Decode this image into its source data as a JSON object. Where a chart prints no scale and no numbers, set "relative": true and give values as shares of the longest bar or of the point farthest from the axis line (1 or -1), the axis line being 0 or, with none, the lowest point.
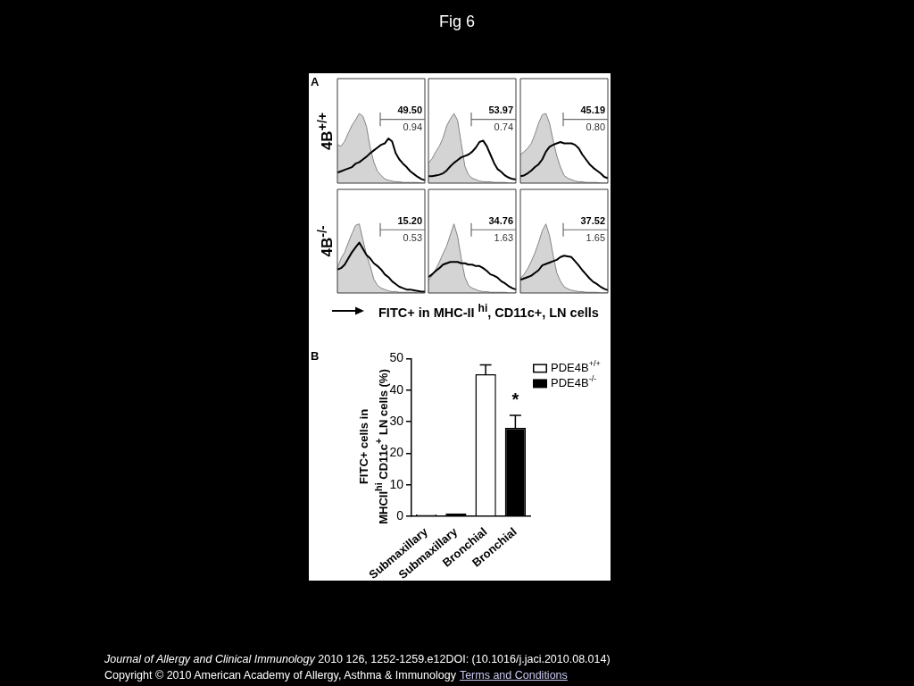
{
  "chart_data": [
    {
      "type": "other",
      "title": "Fig 6"
    },
    {
      "type": "area",
      "title": "A",
      "ylabel": "4B$^{+/+}$",
      "relative": true,
      "tick_labels": false,
      "categories": [
        null,
        null,
        null,
        null,
        null,
        null,
        null,
        null,
        null,
        null,
        null,
        null,
        null,
        null,
        null,
        null,
        null,
        null,
        null,
        null,
        null,
        null,
        null,
        null,
        null
      ],
      "series": [
        {
          "type": "area",
          "color": "#d4d4d4",
          "values": [
            0.55,
            0.53,
            0.6,
            0.72,
            0.83,
            0.91,
            1,
            0.96,
            0.81,
            0.51,
            0.3,
            0.17,
            0.11,
            0.06,
            0.04,
            0.03,
            0.02,
            0.02,
            0.01,
            0.01,
            0.01,
            0.01,
            0.01,
            0,
            0
          ]
        },
        {
          "type": "line",
          "color": "#000000",
          "values": [
            0.15,
            0.17,
            0.19,
            0.21,
            0.23,
            0.28,
            0.3,
            0.34,
            0.38,
            0.43,
            0.47,
            0.51,
            0.55,
            0.57,
            0.64,
            0.6,
            0.43,
            0.34,
            0.28,
            0.23,
            0.17,
            0.13,
            0.09,
            0.06,
            0.04
          ]
        }
      ],
      "annotations": [
        "49.50",
        "0.94"
      ]
    },
    {
      "type": "area",
      "relative": true,
      "tick_labels": false,
      "categories": [
        null,
        null,
        null,
        null,
        null,
        null,
        null,
        null,
        null,
        null,
        null,
        null,
        null,
        null,
        null,
        null,
        null,
        null,
        null,
        null,
        null,
        null,
        null,
        null,
        null
      ],
      "series": [
        {
          "type": "area",
          "color": "#d4d4d4",
          "values": [
            0.29,
            0.35,
            0.45,
            0.53,
            0.65,
            0.82,
            0.92,
            1,
            0.9,
            0.57,
            0.24,
            0.12,
            0.07,
            0.05,
            0.03,
            0.02,
            0.02,
            0.02,
            0.01,
            0.01,
            0.01,
            0.01,
            0,
            0,
            0
          ]
        },
        {
          "type": "line",
          "color": "#000000",
          "values": [
            0.1,
            0.1,
            0.11,
            0.12,
            0.14,
            0.18,
            0.24,
            0.29,
            0.33,
            0.37,
            0.39,
            0.41,
            0.45,
            0.51,
            0.59,
            0.61,
            0.53,
            0.41,
            0.29,
            0.2,
            0.16,
            0.11,
            0.08,
            0.06,
            0.05
          ]
        }
      ],
      "annotations": [
        "53.97",
        "0.74"
      ]
    },
    {
      "type": "area",
      "relative": true,
      "tick_labels": false,
      "categories": [
        null,
        null,
        null,
        null,
        null,
        null,
        null,
        null,
        null,
        null,
        null,
        null,
        null,
        null,
        null,
        null,
        null,
        null,
        null,
        null,
        null,
        null,
        null,
        null,
        null
      ],
      "series": [
        {
          "type": "area",
          "color": "#d4d4d4",
          "values": [
            0.41,
            0.45,
            0.5,
            0.57,
            0.7,
            0.86,
            0.98,
            1,
            0.86,
            0.61,
            0.39,
            0.23,
            0.11,
            0.07,
            0.05,
            0.03,
            0.02,
            0.02,
            0.01,
            0.01,
            0.01,
            0.01,
            0,
            0,
            0
          ]
        },
        {
          "type": "line",
          "color": "#000000",
          "values": [
            0.1,
            0.11,
            0.14,
            0.18,
            0.23,
            0.27,
            0.34,
            0.45,
            0.52,
            0.55,
            0.57,
            0.59,
            0.57,
            0.57,
            0.57,
            0.55,
            0.5,
            0.41,
            0.34,
            0.27,
            0.22,
            0.18,
            0.14,
            0.09,
            0.07
          ]
        }
      ],
      "annotations": [
        "45.19",
        "0.80"
      ]
    },
    {
      "type": "area",
      "ylabel": "4B$^{-/-}$",
      "relative": true,
      "tick_labels": false,
      "categories": [
        null,
        null,
        null,
        null,
        null,
        null,
        null,
        null,
        null,
        null,
        null,
        null,
        null,
        null,
        null,
        null,
        null,
        null,
        null,
        null,
        null,
        null,
        null,
        null,
        null
      ],
      "series": [
        {
          "type": "area",
          "color": "#d4d4d4",
          "values": [
            0.36,
            0.5,
            0.59,
            0.73,
            0.86,
            0.98,
            1,
            0.77,
            0.55,
            0.39,
            0.2,
            0.11,
            0.07,
            0.05,
            0.03,
            0.02,
            0.02,
            0.01,
            0.01,
            0.01,
            0.01,
            0.01,
            0,
            0,
            0
          ]
        },
        {
          "type": "line",
          "color": "#000000",
          "values": [
            0.34,
            0.36,
            0.41,
            0.5,
            0.59,
            0.66,
            0.73,
            0.64,
            0.55,
            0.5,
            0.43,
            0.39,
            0.34,
            0.27,
            0.23,
            0.17,
            0.13,
            0.09,
            0.07,
            0.05,
            0.05,
            0.04,
            0.03,
            0.02,
            0.02
          ]
        }
      ],
      "annotations": [
        "15.20",
        "0.53"
      ]
    },
    {
      "type": "area",
      "xlabel": "FITC+ in MHC-II $^{hi}$, CD11c+, LN cells",
      "relative": true,
      "tick_labels": false,
      "categories": [
        null,
        null,
        null,
        null,
        null,
        null,
        null,
        null,
        null,
        null,
        null,
        null,
        null,
        null,
        null,
        null,
        null,
        null,
        null,
        null,
        null,
        null,
        null,
        null,
        null
      ],
      "series": [
        {
          "type": "area",
          "color": "#d4d4d4",
          "values": [
            0.18,
            0.25,
            0.34,
            0.45,
            0.57,
            0.68,
            0.84,
            1,
            0.82,
            0.5,
            0.23,
            0.11,
            0.07,
            0.05,
            0.03,
            0.02,
            0.02,
            0.01,
            0.01,
            0.01,
            0.01,
            0.01,
            0,
            0,
            0
          ]
        },
        {
          "type": "line",
          "color": "#000000",
          "values": [
            0.23,
            0.27,
            0.32,
            0.36,
            0.41,
            0.43,
            0.45,
            0.45,
            0.45,
            0.43,
            0.43,
            0.41,
            0.41,
            0.39,
            0.39,
            0.36,
            0.32,
            0.27,
            0.25,
            0.22,
            0.17,
            0.14,
            0.1,
            0.07,
            0.05
          ]
        }
      ],
      "annotations": [
        "34.76",
        "1.63"
      ]
    },
    {
      "type": "area",
      "relative": true,
      "tick_labels": false,
      "categories": [
        null,
        null,
        null,
        null,
        null,
        null,
        null,
        null,
        null,
        null,
        null,
        null,
        null,
        null,
        null,
        null,
        null,
        null,
        null,
        null,
        null,
        null,
        null,
        null,
        null
      ],
      "series": [
        {
          "type": "area",
          "color": "#d4d4d4",
          "values": [
            0.21,
            0.27,
            0.35,
            0.46,
            0.58,
            0.73,
            0.9,
            1,
            0.83,
            0.54,
            0.29,
            0.17,
            0.09,
            0.06,
            0.04,
            0.03,
            0.02,
            0.02,
            0.01,
            0.01,
            0.01,
            0.01,
            0,
            0,
            0
          ]
        },
        {
          "type": "line",
          "color": "#000000",
          "values": [
            0.19,
            0.21,
            0.23,
            0.25,
            0.29,
            0.33,
            0.4,
            0.42,
            0.44,
            0.46,
            0.48,
            0.52,
            0.54,
            0.53,
            0.52,
            0.46,
            0.4,
            0.33,
            0.27,
            0.21,
            0.16,
            0.13,
            0.09,
            0.06,
            0.04
          ]
        }
      ],
      "annotations": [
        "37.52",
        "1.65"
      ]
    },
    {
      "type": "bar",
      "title": "B",
      "ylabel": "FITC+ cells in\nMHCII$^{hi}$ CD11c$^{+}$ LN cells (%)",
      "categories": [
        "Submaxillary",
        "Submaxillary",
        "Bronchial",
        "Bronchial"
      ],
      "series": [
        {
          "name": "PDE4B$^{+/+}$",
          "color": "#ffffff",
          "values": [
            0.6,
            null,
            45,
            null
          ],
          "errors": [
            null,
            null,
            [
              45,
              48
            ],
            null
          ]
        },
        {
          "name": "PDE4B$^{-/-}$",
          "color": "#000000",
          "values": [
            null,
            0.9,
            null,
            28
          ],
          "errors": [
            null,
            null,
            null,
            [
              28,
              32
            ]
          ]
        }
      ],
      "ylim": [
        0,
        50
      ],
      "yticks": [
        0,
        10,
        20,
        30,
        40,
        50
      ],
      "legend": "top right",
      "annotations": [
        "*"
      ]
    },
    {
      "type": "other",
      "annotations": [
        "Journal of Allergy and Clinical Immunology 2010 126, 1252-1259.e12DOI: (10.1016/j.jaci.2010.08.014)",
        "Copyright © 2010 American Academy of Allergy, Asthma & Immunology",
        "Terms and Conditions"
      ]
    }
  ]
}
